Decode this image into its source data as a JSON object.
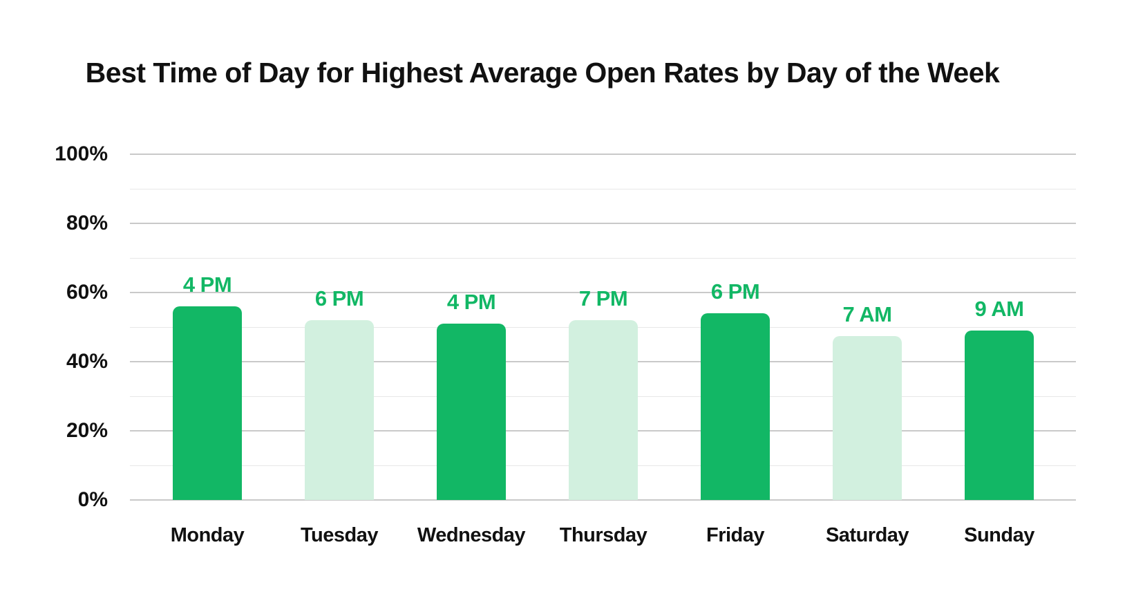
{
  "chart_data": {
    "type": "bar",
    "title": "Best Time of Day for Highest Average Open Rates by Day of the Week",
    "categories": [
      "Monday",
      "Tuesday",
      "Wednesday",
      "Thursday",
      "Friday",
      "Saturday",
      "Sunday"
    ],
    "series": [
      {
        "name": "Average open rate",
        "values": [
          56,
          52,
          51,
          52,
          54,
          47.5,
          49
        ]
      }
    ],
    "bar_labels": [
      "4 PM",
      "6 PM",
      "4 PM",
      "7 PM",
      "6 PM",
      "7 AM",
      "9 AM"
    ],
    "bar_styles": [
      "dark",
      "light",
      "dark",
      "light",
      "dark",
      "light",
      "dark"
    ],
    "xlabel": "",
    "ylabel": "",
    "ylim": [
      0,
      100
    ],
    "yticks": [
      0,
      20,
      40,
      60,
      80,
      100
    ],
    "ytick_labels": [
      "0%",
      "20%",
      "40%",
      "60%",
      "80%",
      "100%"
    ],
    "grid": {
      "horizontal": true,
      "minor_step_pct": 10,
      "major_step_pct": 20
    },
    "legend_position": "none",
    "colors": {
      "bar_dark": "#12B765",
      "bar_light": "#D2F0DF",
      "bar_label": "#12B765",
      "grid_major": "#C9C9C9",
      "grid_minor": "#E7E7E7",
      "text": "#111111",
      "background": "#FFFFFF"
    }
  }
}
